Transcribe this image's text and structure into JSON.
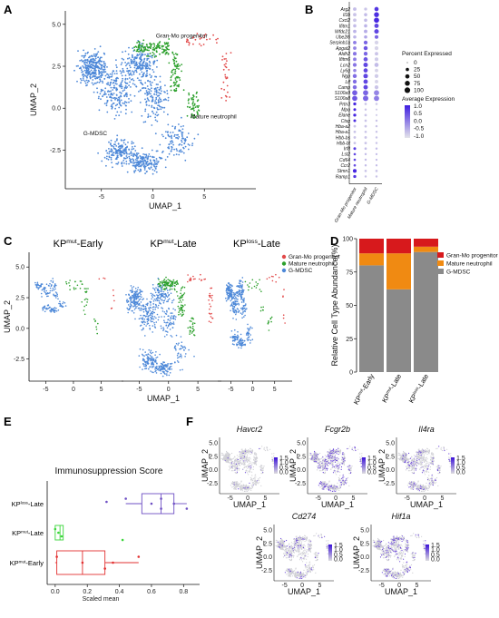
{
  "panels": {
    "a": "A",
    "b": "B",
    "c": "C",
    "d": "D",
    "e": "E",
    "f": "F"
  },
  "palette": {
    "gran_mo": "#e24a4a",
    "mature": "#2ca02c",
    "gmdsc": "#4d88d8",
    "gray_bar": "#8a8a8a",
    "orange_bar": "#f08a12",
    "red_bar": "#d7191c",
    "purple": "#6e4fc4",
    "green_box": "#3bd63b",
    "red_box": "#e23030"
  },
  "chart_data": [
    {
      "id": "A",
      "type": "scatter",
      "xlabel": "UMAP_1",
      "ylabel": "UMAP_2",
      "xticks": [
        -5,
        0,
        5
      ],
      "yticks": [
        -2.5,
        0.0,
        2.5,
        5.0
      ],
      "xlim": [
        -8.5,
        10
      ],
      "ylim": [
        -4.8,
        5.8
      ],
      "annotations": [
        "Gran-Mo progenitor",
        "Mature neutrophil",
        "G-MDSC"
      ],
      "series": [
        {
          "name": "Gran-Mo progenitor",
          "approx_points": 55
        },
        {
          "name": "Mature neutrophil",
          "approx_points": 260
        },
        {
          "name": "G-MDSC",
          "approx_points": 1300
        }
      ]
    },
    {
      "id": "B",
      "type": "scatter",
      "genes": [
        "Arg2",
        "Il1b",
        "Cxcl2",
        "Ifitm1",
        "Wfdc21",
        "Ube2l6",
        "Serpinb1a",
        "Apgat2",
        "Aldh2",
        "Ifitm6",
        "Lcn2",
        "Ly6g",
        "Ngp",
        "Ltf",
        "Camp",
        "S100a9",
        "S100a8",
        "Prtn3",
        "Mpo",
        "Elane",
        "Ctsg",
        "Hba-a2",
        "Hba-a1",
        "Hbb-bs",
        "Hbb-bt",
        "Irf8",
        "Lst2",
        "Cd64",
        "Ccr2",
        "Stmn1",
        "Ramp1"
      ],
      "groups": [
        "Gran-Mo progenitor",
        "Mature neutrophil",
        "G-MDSC"
      ],
      "pct_matrix": [
        [
          30,
          20,
          50
        ],
        [
          30,
          25,
          75
        ],
        [
          28,
          25,
          80
        ],
        [
          25,
          25,
          55
        ],
        [
          28,
          30,
          60
        ],
        [
          25,
          25,
          35
        ],
        [
          30,
          40,
          40
        ],
        [
          30,
          45,
          40
        ],
        [
          35,
          40,
          30
        ],
        [
          30,
          50,
          35
        ],
        [
          40,
          60,
          50
        ],
        [
          25,
          50,
          30
        ],
        [
          45,
          60,
          40
        ],
        [
          40,
          55,
          30
        ],
        [
          45,
          55,
          40
        ],
        [
          80,
          85,
          85
        ],
        [
          80,
          90,
          85
        ],
        [
          20,
          10,
          10
        ],
        [
          15,
          8,
          5
        ],
        [
          20,
          12,
          5
        ],
        [
          15,
          10,
          8
        ],
        [
          12,
          12,
          8
        ],
        [
          12,
          10,
          8
        ],
        [
          12,
          12,
          8
        ],
        [
          12,
          12,
          8
        ],
        [
          15,
          10,
          8
        ],
        [
          10,
          8,
          6
        ],
        [
          10,
          8,
          6
        ],
        [
          10,
          8,
          6
        ],
        [
          35,
          10,
          10
        ],
        [
          20,
          8,
          8
        ]
      ],
      "avg_matrix": [
        [
          -0.5,
          -0.6,
          1.2
        ],
        [
          -0.6,
          -0.5,
          1.3
        ],
        [
          -0.6,
          -0.5,
          1.4
        ],
        [
          -0.5,
          -0.4,
          1.0
        ],
        [
          -0.4,
          -0.3,
          1.0
        ],
        [
          -0.4,
          -0.2,
          0.6
        ],
        [
          0.3,
          0.6,
          -0.8
        ],
        [
          0.2,
          0.8,
          -0.8
        ],
        [
          0.4,
          0.6,
          -0.6
        ],
        [
          0.3,
          0.8,
          -0.7
        ],
        [
          0.4,
          1.0,
          -0.5
        ],
        [
          0.2,
          1.0,
          -0.8
        ],
        [
          0.5,
          1.0,
          -0.7
        ],
        [
          0.5,
          1.0,
          -0.8
        ],
        [
          0.5,
          1.0,
          -0.6
        ],
        [
          0.7,
          0.6,
          0.2
        ],
        [
          0.8,
          0.6,
          0.3
        ],
        [
          1.4,
          -0.6,
          -0.7
        ],
        [
          1.4,
          -0.6,
          -0.7
        ],
        [
          1.4,
          -0.6,
          -0.7
        ],
        [
          1.3,
          -0.6,
          -0.6
        ],
        [
          -0.6,
          -0.6,
          -0.6
        ],
        [
          -0.6,
          -0.6,
          -0.6
        ],
        [
          -0.6,
          -0.6,
          -0.6
        ],
        [
          -0.6,
          -0.6,
          -0.6
        ],
        [
          1.1,
          -0.5,
          -0.5
        ],
        [
          1.0,
          -0.5,
          -0.5
        ],
        [
          1.0,
          -0.5,
          -0.5
        ],
        [
          0.9,
          -0.5,
          -0.5
        ],
        [
          1.4,
          -0.6,
          -0.6
        ],
        [
          1.2,
          -0.6,
          -0.6
        ]
      ],
      "size_legend_title": "Percent Expressed",
      "size_legend": [
        0,
        25,
        50,
        75,
        100
      ],
      "color_legend_title": "Average Expression",
      "color_legend": [
        "1.0",
        "0.5",
        "0.0",
        "-0.5",
        "-1.0"
      ]
    },
    {
      "id": "C",
      "type": "scatter",
      "subtitles": [
        {
          "pre": "KP",
          "sup": "mut",
          "post": "-Early"
        },
        {
          "pre": "KP",
          "sup": "mut",
          "post": "-Late"
        },
        {
          "pre": "KP",
          "sup": "loss",
          "post": "-Late"
        }
      ],
      "xlabel": "UMAP_1",
      "ylabel": "UMAP_2",
      "xticks": [
        -5,
        0,
        5
      ],
      "yticks": [
        -2.5,
        0.0,
        2.5,
        5.0
      ],
      "legend": [
        "Gran-Mo progenitor",
        "Mature neutrophil",
        "G-MDSC"
      ]
    },
    {
      "id": "D",
      "type": "bar",
      "stacked": true,
      "ylabel": "Relative Cell Type Abundance(%)",
      "yticks": [
        0,
        25,
        50,
        75,
        100
      ],
      "ylim": [
        0,
        100
      ],
      "categories": [
        {
          "pre": "KP",
          "sup": "mut",
          "post": "-Early"
        },
        {
          "pre": "KP",
          "sup": "mut",
          "post": "-Late"
        },
        {
          "pre": "KP",
          "sup": "loss",
          "post": "-Late"
        }
      ],
      "series": [
        {
          "name": "G-MDSC",
          "values": [
            80,
            62,
            90
          ]
        },
        {
          "name": "Mature neutrophil",
          "values": [
            9,
            27,
            4
          ]
        },
        {
          "name": "Gran-Mo progenitor",
          "values": [
            11,
            11,
            6
          ]
        }
      ],
      "legend": [
        "Gran-Mo progenitor",
        "Mature neutrophil",
        "G-MDSC"
      ]
    },
    {
      "id": "E",
      "type": "box",
      "title": "Immunosuppression Score",
      "xlabel": "Scaled mean",
      "xticks": [
        "0.0",
        "0.2",
        "0.4",
        "0.6",
        "0.8"
      ],
      "xlim": [
        -0.05,
        0.9
      ],
      "categories": [
        {
          "pre": "KP",
          "sup": "loss",
          "post": "-Late"
        },
        {
          "pre": "KP",
          "sup": "mut",
          "post": "-Late"
        },
        {
          "pre": "KP",
          "sup": "mut",
          "post": "-Early"
        }
      ],
      "boxes": [
        {
          "min": 0.44,
          "q1": 0.54,
          "median": 0.66,
          "q3": 0.74,
          "max": 0.82,
          "points": [
            0.44,
            0.6,
            0.66,
            0.66,
            0.74,
            0.82
          ],
          "outliers": [
            0.32
          ]
        },
        {
          "min": 0.0,
          "q1": 0.0,
          "median": 0.03,
          "q3": 0.05,
          "max": 0.05,
          "points": [
            0.0,
            0.02,
            0.04
          ],
          "outliers": [
            0.42
          ]
        },
        {
          "min": 0.0,
          "q1": 0.01,
          "median": 0.17,
          "q3": 0.31,
          "max": 0.52,
          "points": [
            0.01,
            0.17,
            0.31,
            0.52,
            0.36
          ],
          "outliers": []
        }
      ]
    },
    {
      "id": "F",
      "type": "scatter",
      "xlabel": "UMAP_1",
      "ylabel": "UMAP_2",
      "genes": [
        "Havcr2",
        "Fcgr2b",
        "Il4ra",
        "Cd274",
        "Hif1a"
      ],
      "xticks": [
        -5,
        0,
        5
      ],
      "yticks": [
        -2.5,
        0.0,
        2.5,
        5.0
      ],
      "colorbar": [
        "1.5",
        "1.0",
        "0.5",
        "0.0"
      ]
    }
  ]
}
